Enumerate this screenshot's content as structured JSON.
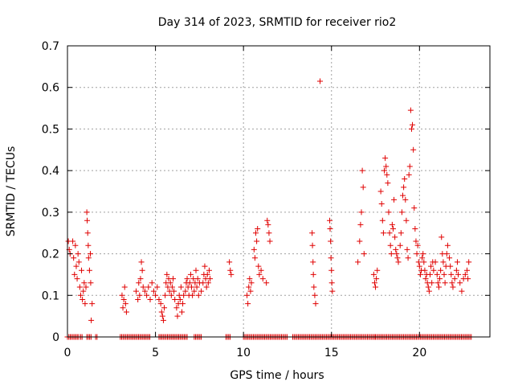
{
  "chart_data": {
    "type": "scatter",
    "title": "Day 314 of 2023, SRMTID for receiver rio2",
    "xlabel": "GPS time / hours",
    "ylabel": "SRMTID / TECUs",
    "xlim": [
      0,
      24
    ],
    "ylim": [
      0,
      0.7
    ],
    "xticks": [
      0,
      5,
      10,
      15,
      20
    ],
    "yticks": [
      0,
      0.1,
      0.2,
      0.3,
      0.4,
      0.5,
      0.6,
      0.7
    ],
    "grid": true,
    "marker": "+",
    "color": "#e00000",
    "series": [
      {
        "name": "SRMTID",
        "points": [
          [
            0.05,
            0.23
          ],
          [
            0.1,
            0.21
          ],
          [
            0.15,
            0.2
          ],
          [
            0.3,
            0.23
          ],
          [
            0.35,
            0.19
          ],
          [
            0.4,
            0.15
          ],
          [
            0.45,
            0.22
          ],
          [
            0.5,
            0.17
          ],
          [
            0.55,
            0.14
          ],
          [
            0.6,
            0.2
          ],
          [
            0.65,
            0.18
          ],
          [
            0.7,
            0.12
          ],
          [
            0.75,
            0.1
          ],
          [
            0.8,
            0.16
          ],
          [
            0.85,
            0.09
          ],
          [
            0.9,
            0.11
          ],
          [
            0.95,
            0.13
          ],
          [
            1.0,
            0.08
          ],
          [
            1.05,
            0.12
          ],
          [
            1.1,
            0.3
          ],
          [
            1.12,
            0.28
          ],
          [
            1.15,
            0.25
          ],
          [
            1.18,
            0.22
          ],
          [
            1.2,
            0.19
          ],
          [
            1.25,
            0.16
          ],
          [
            1.3,
            0.2
          ],
          [
            1.32,
            0.13
          ],
          [
            1.35,
            0.04
          ],
          [
            1.4,
            0.08
          ],
          [
            3.1,
            0.1
          ],
          [
            3.15,
            0.07
          ],
          [
            3.2,
            0.09
          ],
          [
            3.25,
            0.12
          ],
          [
            3.3,
            0.08
          ],
          [
            3.35,
            0.06
          ],
          [
            3.9,
            0.11
          ],
          [
            4.0,
            0.09
          ],
          [
            4.05,
            0.13
          ],
          [
            4.1,
            0.1
          ],
          [
            4.15,
            0.14
          ],
          [
            4.2,
            0.18
          ],
          [
            4.25,
            0.16
          ],
          [
            4.3,
            0.12
          ],
          [
            4.4,
            0.11
          ],
          [
            4.5,
            0.1
          ],
          [
            4.6,
            0.12
          ],
          [
            4.7,
            0.09
          ],
          [
            4.8,
            0.13
          ],
          [
            4.9,
            0.11
          ],
          [
            5.0,
            0.1
          ],
          [
            5.1,
            0.12
          ],
          [
            5.2,
            0.09
          ],
          [
            5.3,
            0.08
          ],
          [
            5.35,
            0.06
          ],
          [
            5.4,
            0.05
          ],
          [
            5.45,
            0.04
          ],
          [
            5.5,
            0.07
          ],
          [
            5.55,
            0.1
          ],
          [
            5.6,
            0.13
          ],
          [
            5.65,
            0.15
          ],
          [
            5.7,
            0.12
          ],
          [
            5.75,
            0.14
          ],
          [
            5.8,
            0.11
          ],
          [
            5.85,
            0.13
          ],
          [
            5.9,
            0.1
          ],
          [
            5.95,
            0.12
          ],
          [
            6.0,
            0.14
          ],
          [
            6.05,
            0.11
          ],
          [
            6.1,
            0.09
          ],
          [
            6.2,
            0.07
          ],
          [
            6.25,
            0.05
          ],
          [
            6.3,
            0.08
          ],
          [
            6.35,
            0.1
          ],
          [
            6.4,
            0.09
          ],
          [
            6.45,
            0.12
          ],
          [
            6.5,
            0.06
          ],
          [
            6.55,
            0.08
          ],
          [
            6.6,
            0.1
          ],
          [
            6.7,
            0.11
          ],
          [
            6.75,
            0.13
          ],
          [
            6.8,
            0.14
          ],
          [
            6.85,
            0.12
          ],
          [
            6.9,
            0.1
          ],
          [
            6.95,
            0.13
          ],
          [
            7.0,
            0.15
          ],
          [
            7.05,
            0.12
          ],
          [
            7.1,
            0.1
          ],
          [
            7.15,
            0.14
          ],
          [
            7.2,
            0.11
          ],
          [
            7.25,
            0.13
          ],
          [
            7.3,
            0.16
          ],
          [
            7.35,
            0.12
          ],
          [
            7.4,
            0.14
          ],
          [
            7.45,
            0.1
          ],
          [
            7.5,
            0.13
          ],
          [
            7.6,
            0.11
          ],
          [
            7.7,
            0.13
          ],
          [
            7.75,
            0.15
          ],
          [
            7.8,
            0.17
          ],
          [
            7.85,
            0.14
          ],
          [
            7.9,
            0.12
          ],
          [
            7.95,
            0.15
          ],
          [
            8.0,
            0.13
          ],
          [
            8.05,
            0.16
          ],
          [
            8.1,
            0.14
          ],
          [
            9.2,
            0.18
          ],
          [
            9.25,
            0.16
          ],
          [
            9.3,
            0.15
          ],
          [
            10.2,
            0.1
          ],
          [
            10.25,
            0.08
          ],
          [
            10.3,
            0.12
          ],
          [
            10.35,
            0.14
          ],
          [
            10.4,
            0.11
          ],
          [
            10.45,
            0.13
          ],
          [
            10.6,
            0.21
          ],
          [
            10.65,
            0.19
          ],
          [
            10.7,
            0.25
          ],
          [
            10.75,
            0.23
          ],
          [
            10.8,
            0.26
          ],
          [
            10.85,
            0.17
          ],
          [
            10.9,
            0.15
          ],
          [
            11.0,
            0.16
          ],
          [
            11.1,
            0.14
          ],
          [
            11.3,
            0.13
          ],
          [
            11.35,
            0.28
          ],
          [
            11.4,
            0.27
          ],
          [
            11.45,
            0.25
          ],
          [
            11.5,
            0.23
          ],
          [
            13.9,
            0.25
          ],
          [
            13.92,
            0.22
          ],
          [
            13.95,
            0.18
          ],
          [
            13.97,
            0.15
          ],
          [
            14.0,
            0.12
          ],
          [
            14.05,
            0.1
          ],
          [
            14.1,
            0.08
          ],
          [
            14.35,
            0.615
          ],
          [
            14.9,
            0.28
          ],
          [
            14.92,
            0.26
          ],
          [
            14.95,
            0.23
          ],
          [
            14.97,
            0.19
          ],
          [
            15.0,
            0.16
          ],
          [
            15.02,
            0.13
          ],
          [
            15.05,
            0.11
          ],
          [
            16.5,
            0.18
          ],
          [
            16.6,
            0.23
          ],
          [
            16.65,
            0.27
          ],
          [
            16.7,
            0.3
          ],
          [
            16.75,
            0.4
          ],
          [
            16.8,
            0.36
          ],
          [
            16.85,
            0.2
          ],
          [
            17.4,
            0.15
          ],
          [
            17.45,
            0.13
          ],
          [
            17.5,
            0.12
          ],
          [
            17.55,
            0.14
          ],
          [
            17.6,
            0.16
          ],
          [
            17.8,
            0.35
          ],
          [
            17.85,
            0.32
          ],
          [
            17.9,
            0.28
          ],
          [
            17.95,
            0.25
          ],
          [
            18.0,
            0.4
          ],
          [
            18.05,
            0.43
          ],
          [
            18.1,
            0.41
          ],
          [
            18.15,
            0.39
          ],
          [
            18.2,
            0.37
          ],
          [
            18.25,
            0.3
          ],
          [
            18.3,
            0.25
          ],
          [
            18.35,
            0.22
          ],
          [
            18.4,
            0.2
          ],
          [
            18.45,
            0.27
          ],
          [
            18.5,
            0.26
          ],
          [
            18.55,
            0.33
          ],
          [
            18.6,
            0.24
          ],
          [
            18.65,
            0.21
          ],
          [
            18.7,
            0.2
          ],
          [
            18.75,
            0.19
          ],
          [
            18.8,
            0.18
          ],
          [
            18.9,
            0.22
          ],
          [
            18.95,
            0.25
          ],
          [
            19.0,
            0.3
          ],
          [
            19.05,
            0.34
          ],
          [
            19.1,
            0.36
          ],
          [
            19.15,
            0.38
          ],
          [
            19.2,
            0.33
          ],
          [
            19.25,
            0.28
          ],
          [
            19.3,
            0.21
          ],
          [
            19.35,
            0.19
          ],
          [
            19.4,
            0.39
          ],
          [
            19.45,
            0.41
          ],
          [
            19.5,
            0.545
          ],
          [
            19.55,
            0.5
          ],
          [
            19.6,
            0.51
          ],
          [
            19.65,
            0.45
          ],
          [
            19.7,
            0.31
          ],
          [
            19.75,
            0.26
          ],
          [
            19.8,
            0.23
          ],
          [
            19.85,
            0.2
          ],
          [
            19.9,
            0.22
          ],
          [
            19.95,
            0.18
          ],
          [
            20.0,
            0.17
          ],
          [
            20.05,
            0.15
          ],
          [
            20.1,
            0.16
          ],
          [
            20.15,
            0.19
          ],
          [
            20.2,
            0.2
          ],
          [
            20.25,
            0.18
          ],
          [
            20.3,
            0.16
          ],
          [
            20.35,
            0.14
          ],
          [
            20.4,
            0.15
          ],
          [
            20.45,
            0.13
          ],
          [
            20.5,
            0.12
          ],
          [
            20.55,
            0.11
          ],
          [
            20.6,
            0.15
          ],
          [
            20.65,
            0.17
          ],
          [
            20.7,
            0.13
          ],
          [
            20.75,
            0.18
          ],
          [
            20.8,
            0.16
          ],
          [
            20.9,
            0.18
          ],
          [
            21.0,
            0.15
          ],
          [
            21.05,
            0.13
          ],
          [
            21.1,
            0.12
          ],
          [
            21.15,
            0.14
          ],
          [
            21.2,
            0.16
          ],
          [
            21.25,
            0.24
          ],
          [
            21.3,
            0.2
          ],
          [
            21.35,
            0.18
          ],
          [
            21.4,
            0.15
          ],
          [
            21.45,
            0.13
          ],
          [
            21.5,
            0.17
          ],
          [
            21.55,
            0.2
          ],
          [
            21.6,
            0.22
          ],
          [
            21.7,
            0.19
          ],
          [
            21.75,
            0.17
          ],
          [
            21.8,
            0.15
          ],
          [
            21.85,
            0.13
          ],
          [
            21.9,
            0.12
          ],
          [
            22.0,
            0.14
          ],
          [
            22.1,
            0.16
          ],
          [
            22.15,
            0.18
          ],
          [
            22.2,
            0.15
          ],
          [
            22.3,
            0.13
          ],
          [
            22.4,
            0.11
          ],
          [
            22.5,
            0.14
          ],
          [
            22.6,
            0.15
          ],
          [
            22.7,
            0.16
          ],
          [
            22.75,
            0.14
          ],
          [
            22.8,
            0.18
          ]
        ],
        "zero_runs": [
          [
            0.0,
            0.7
          ],
          [
            0.75,
            0.85
          ],
          [
            1.1,
            1.4
          ],
          [
            1.6,
            1.7
          ],
          [
            3.0,
            4.7
          ],
          [
            5.2,
            6.8
          ],
          [
            7.2,
            7.6
          ],
          [
            9.0,
            9.3
          ],
          [
            10.0,
            12.5
          ],
          [
            12.8,
            17.5
          ],
          [
            17.5,
            23.0
          ]
        ]
      }
    ]
  }
}
